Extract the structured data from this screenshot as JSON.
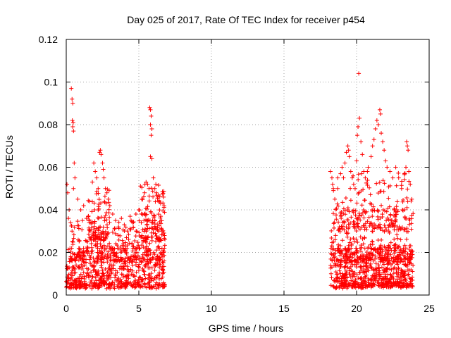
{
  "chart_data": {
    "type": "scatter",
    "title": "Day 025 of 2017, Rate Of TEC Index for receiver p454",
    "xlabel": "GPS time / hours",
    "ylabel": "ROTI / TECUs",
    "xlim": [
      0,
      25
    ],
    "ylim": [
      0,
      0.12
    ],
    "x_ticks": [
      0,
      5,
      10,
      15,
      20,
      25
    ],
    "x_tick_labels": [
      "0",
      "5",
      "10",
      "15",
      "20",
      "25"
    ],
    "y_ticks": [
      0,
      0.02,
      0.04,
      0.06,
      0.08,
      0.1,
      0.12
    ],
    "y_tick_labels": [
      "0",
      "0.02",
      "0.04",
      "0.06",
      "0.08",
      "0.1",
      "0.12"
    ],
    "grid": true,
    "marker": "+",
    "color": "#ff0000",
    "series": [
      {
        "name": "ROTI",
        "points": [
          [
            0.05,
            0.052
          ],
          [
            0.1,
            0.048
          ],
          [
            0.15,
            0.036
          ],
          [
            0.2,
            0.04
          ],
          [
            0.3,
            0.034
          ],
          [
            0.4,
            0.03
          ],
          [
            0.35,
            0.097
          ],
          [
            0.4,
            0.092
          ],
          [
            0.45,
            0.09
          ],
          [
            0.42,
            0.082
          ],
          [
            0.45,
            0.079
          ],
          [
            0.5,
            0.077
          ],
          [
            0.48,
            0.081
          ],
          [
            0.55,
            0.062
          ],
          [
            0.6,
            0.055
          ],
          [
            0.5,
            0.05
          ],
          [
            0.8,
            0.045
          ],
          [
            1.0,
            0.04
          ],
          [
            1.2,
            0.042
          ],
          [
            1.4,
            0.036
          ],
          [
            1.6,
            0.044
          ],
          [
            1.8,
            0.053
          ],
          [
            1.9,
            0.062
          ],
          [
            2.0,
            0.058
          ],
          [
            2.1,
            0.055
          ],
          [
            2.2,
            0.05
          ],
          [
            2.3,
            0.067
          ],
          [
            2.35,
            0.068
          ],
          [
            2.4,
            0.066
          ],
          [
            2.5,
            0.062
          ],
          [
            2.55,
            0.059
          ],
          [
            2.6,
            0.055
          ],
          [
            2.7,
            0.05
          ],
          [
            2.8,
            0.048
          ],
          [
            2.9,
            0.045
          ],
          [
            3.0,
            0.042
          ],
          [
            3.2,
            0.038
          ],
          [
            3.4,
            0.035
          ],
          [
            3.6,
            0.032
          ],
          [
            3.8,
            0.036
          ],
          [
            4.0,
            0.033
          ],
          [
            4.2,
            0.03
          ],
          [
            4.4,
            0.037
          ],
          [
            4.6,
            0.034
          ],
          [
            4.8,
            0.038
          ],
          [
            5.0,
            0.04
          ],
          [
            5.2,
            0.045
          ],
          [
            5.4,
            0.048
          ],
          [
            5.5,
            0.053
          ],
          [
            5.6,
            0.052
          ],
          [
            5.7,
            0.05
          ],
          [
            5.75,
            0.088
          ],
          [
            5.8,
            0.087
          ],
          [
            5.85,
            0.084
          ],
          [
            5.8,
            0.08
          ],
          [
            5.9,
            0.078
          ],
          [
            5.85,
            0.075
          ],
          [
            5.8,
            0.065
          ],
          [
            5.9,
            0.064
          ],
          [
            6.0,
            0.055
          ],
          [
            6.1,
            0.05
          ],
          [
            6.2,
            0.048
          ],
          [
            6.3,
            0.046
          ],
          [
            6.4,
            0.044
          ],
          [
            6.5,
            0.043
          ],
          [
            6.6,
            0.03
          ],
          [
            6.7,
            0.02
          ],
          [
            18.2,
            0.058
          ],
          [
            18.3,
            0.055
          ],
          [
            18.35,
            0.052
          ],
          [
            18.4,
            0.05
          ],
          [
            18.5,
            0.045
          ],
          [
            18.7,
            0.05
          ],
          [
            18.9,
            0.057
          ],
          [
            19.0,
            0.06
          ],
          [
            19.1,
            0.055
          ],
          [
            19.2,
            0.062
          ],
          [
            19.3,
            0.067
          ],
          [
            19.4,
            0.07
          ],
          [
            19.45,
            0.068
          ],
          [
            19.5,
            0.065
          ],
          [
            19.6,
            0.058
          ],
          [
            19.7,
            0.055
          ],
          [
            19.8,
            0.052
          ],
          [
            19.9,
            0.05
          ],
          [
            20.0,
            0.063
          ],
          [
            20.05,
            0.075
          ],
          [
            20.1,
            0.079
          ],
          [
            20.15,
            0.104
          ],
          [
            20.2,
            0.083
          ],
          [
            20.3,
            0.072
          ],
          [
            20.4,
            0.066
          ],
          [
            20.5,
            0.058
          ],
          [
            20.6,
            0.055
          ],
          [
            20.8,
            0.06
          ],
          [
            21.0,
            0.065
          ],
          [
            21.1,
            0.07
          ],
          [
            21.2,
            0.073
          ],
          [
            21.3,
            0.078
          ],
          [
            21.4,
            0.082
          ],
          [
            21.5,
            0.08
          ],
          [
            21.6,
            0.087
          ],
          [
            21.65,
            0.085
          ],
          [
            21.7,
            0.076
          ],
          [
            21.8,
            0.072
          ],
          [
            21.9,
            0.068
          ],
          [
            22.0,
            0.063
          ],
          [
            22.1,
            0.06
          ],
          [
            22.3,
            0.058
          ],
          [
            22.5,
            0.055
          ],
          [
            22.7,
            0.06
          ],
          [
            22.9,
            0.055
          ],
          [
            23.1,
            0.05
          ],
          [
            23.3,
            0.057
          ],
          [
            23.4,
            0.06
          ],
          [
            23.45,
            0.072
          ],
          [
            23.5,
            0.07
          ],
          [
            23.55,
            0.068
          ],
          [
            23.6,
            0.058
          ],
          [
            23.7,
            0.052
          ],
          [
            23.8,
            0.045
          ]
        ],
        "dense_bands": [
          {
            "x_range": [
              0.0,
              6.8
            ],
            "y_range": [
              0.003,
              0.022
            ],
            "count": 600
          },
          {
            "x_range": [
              0.3,
              6.8
            ],
            "y_range": [
              0.015,
              0.035
            ],
            "count": 260
          },
          {
            "x_range": [
              5.0,
              6.8
            ],
            "y_range": [
              0.025,
              0.052
            ],
            "count": 120
          },
          {
            "x_range": [
              1.5,
              3.0
            ],
            "y_range": [
              0.025,
              0.05
            ],
            "count": 90
          },
          {
            "x_range": [
              18.2,
              23.9
            ],
            "y_range": [
              0.003,
              0.022
            ],
            "count": 600
          },
          {
            "x_range": [
              18.2,
              23.9
            ],
            "y_range": [
              0.015,
              0.04
            ],
            "count": 320
          },
          {
            "x_range": [
              18.4,
              23.8
            ],
            "y_range": [
              0.03,
              0.058
            ],
            "count": 160
          }
        ]
      }
    ]
  }
}
